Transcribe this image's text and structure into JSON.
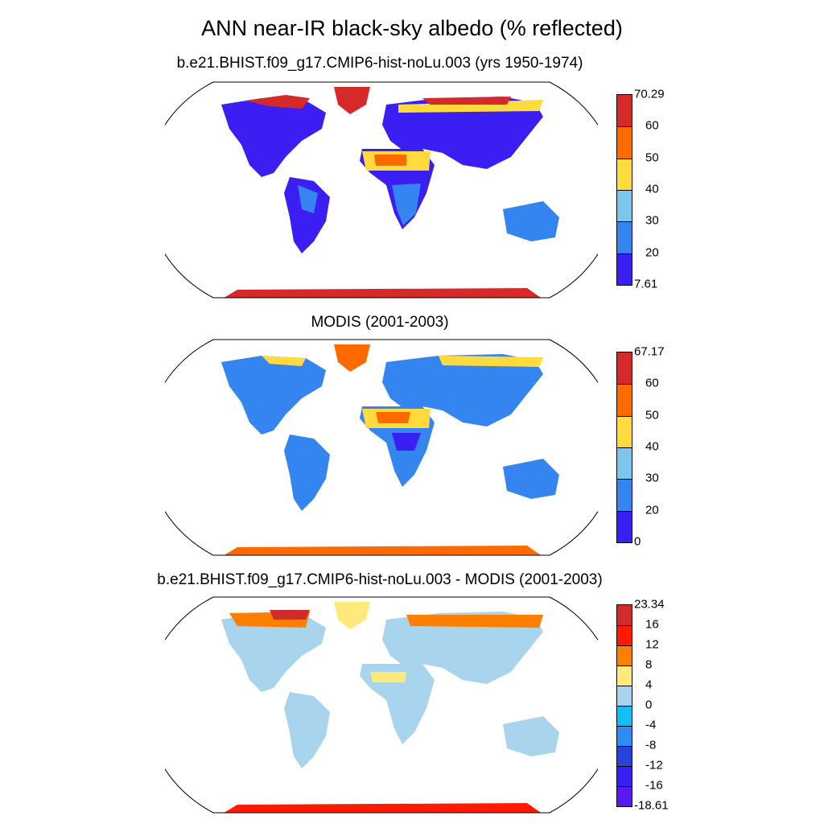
{
  "title": "ANN near-IR black-sky albedo (% reflected)",
  "panels": [
    {
      "title": "b.e21.BHIST.f09_g17.CMIP6-hist-noLu.003 (yrs 1950-1974)",
      "colorbar": {
        "labels": [
          "70.29",
          "60",
          "50",
          "40",
          "30",
          "20",
          "7.61"
        ],
        "colors": [
          "#d62a2a",
          "#ff6a00",
          "#ffdb3d",
          "#7cc6ee",
          "#3485f0",
          "#3b1ff2"
        ]
      }
    },
    {
      "title": "MODIS (2001-2003)",
      "colorbar": {
        "labels": [
          "67.17",
          "60",
          "50",
          "40",
          "30",
          "20",
          "0"
        ],
        "colors": [
          "#d62a2a",
          "#ff6a00",
          "#ffdb3d",
          "#7cc6ee",
          "#3485f0",
          "#3b1ff2"
        ]
      }
    },
    {
      "title": "b.e21.BHIST.f09_g17.CMIP6-hist-noLu.003 - MODIS (2001-2003)",
      "colorbar": {
        "labels": [
          "23.34",
          "16",
          "12",
          "8",
          "4",
          "0",
          "-4",
          "-8",
          "-12",
          "-16",
          "-18.61"
        ],
        "colors": [
          "#d22b2b",
          "#ff1a00",
          "#ff7f00",
          "#ffe97a",
          "#a9d4ee",
          "#12bff7",
          "#2f8bf5",
          "#2643dc",
          "#3b1ff2",
          "#5b18f0"
        ]
      }
    }
  ]
}
